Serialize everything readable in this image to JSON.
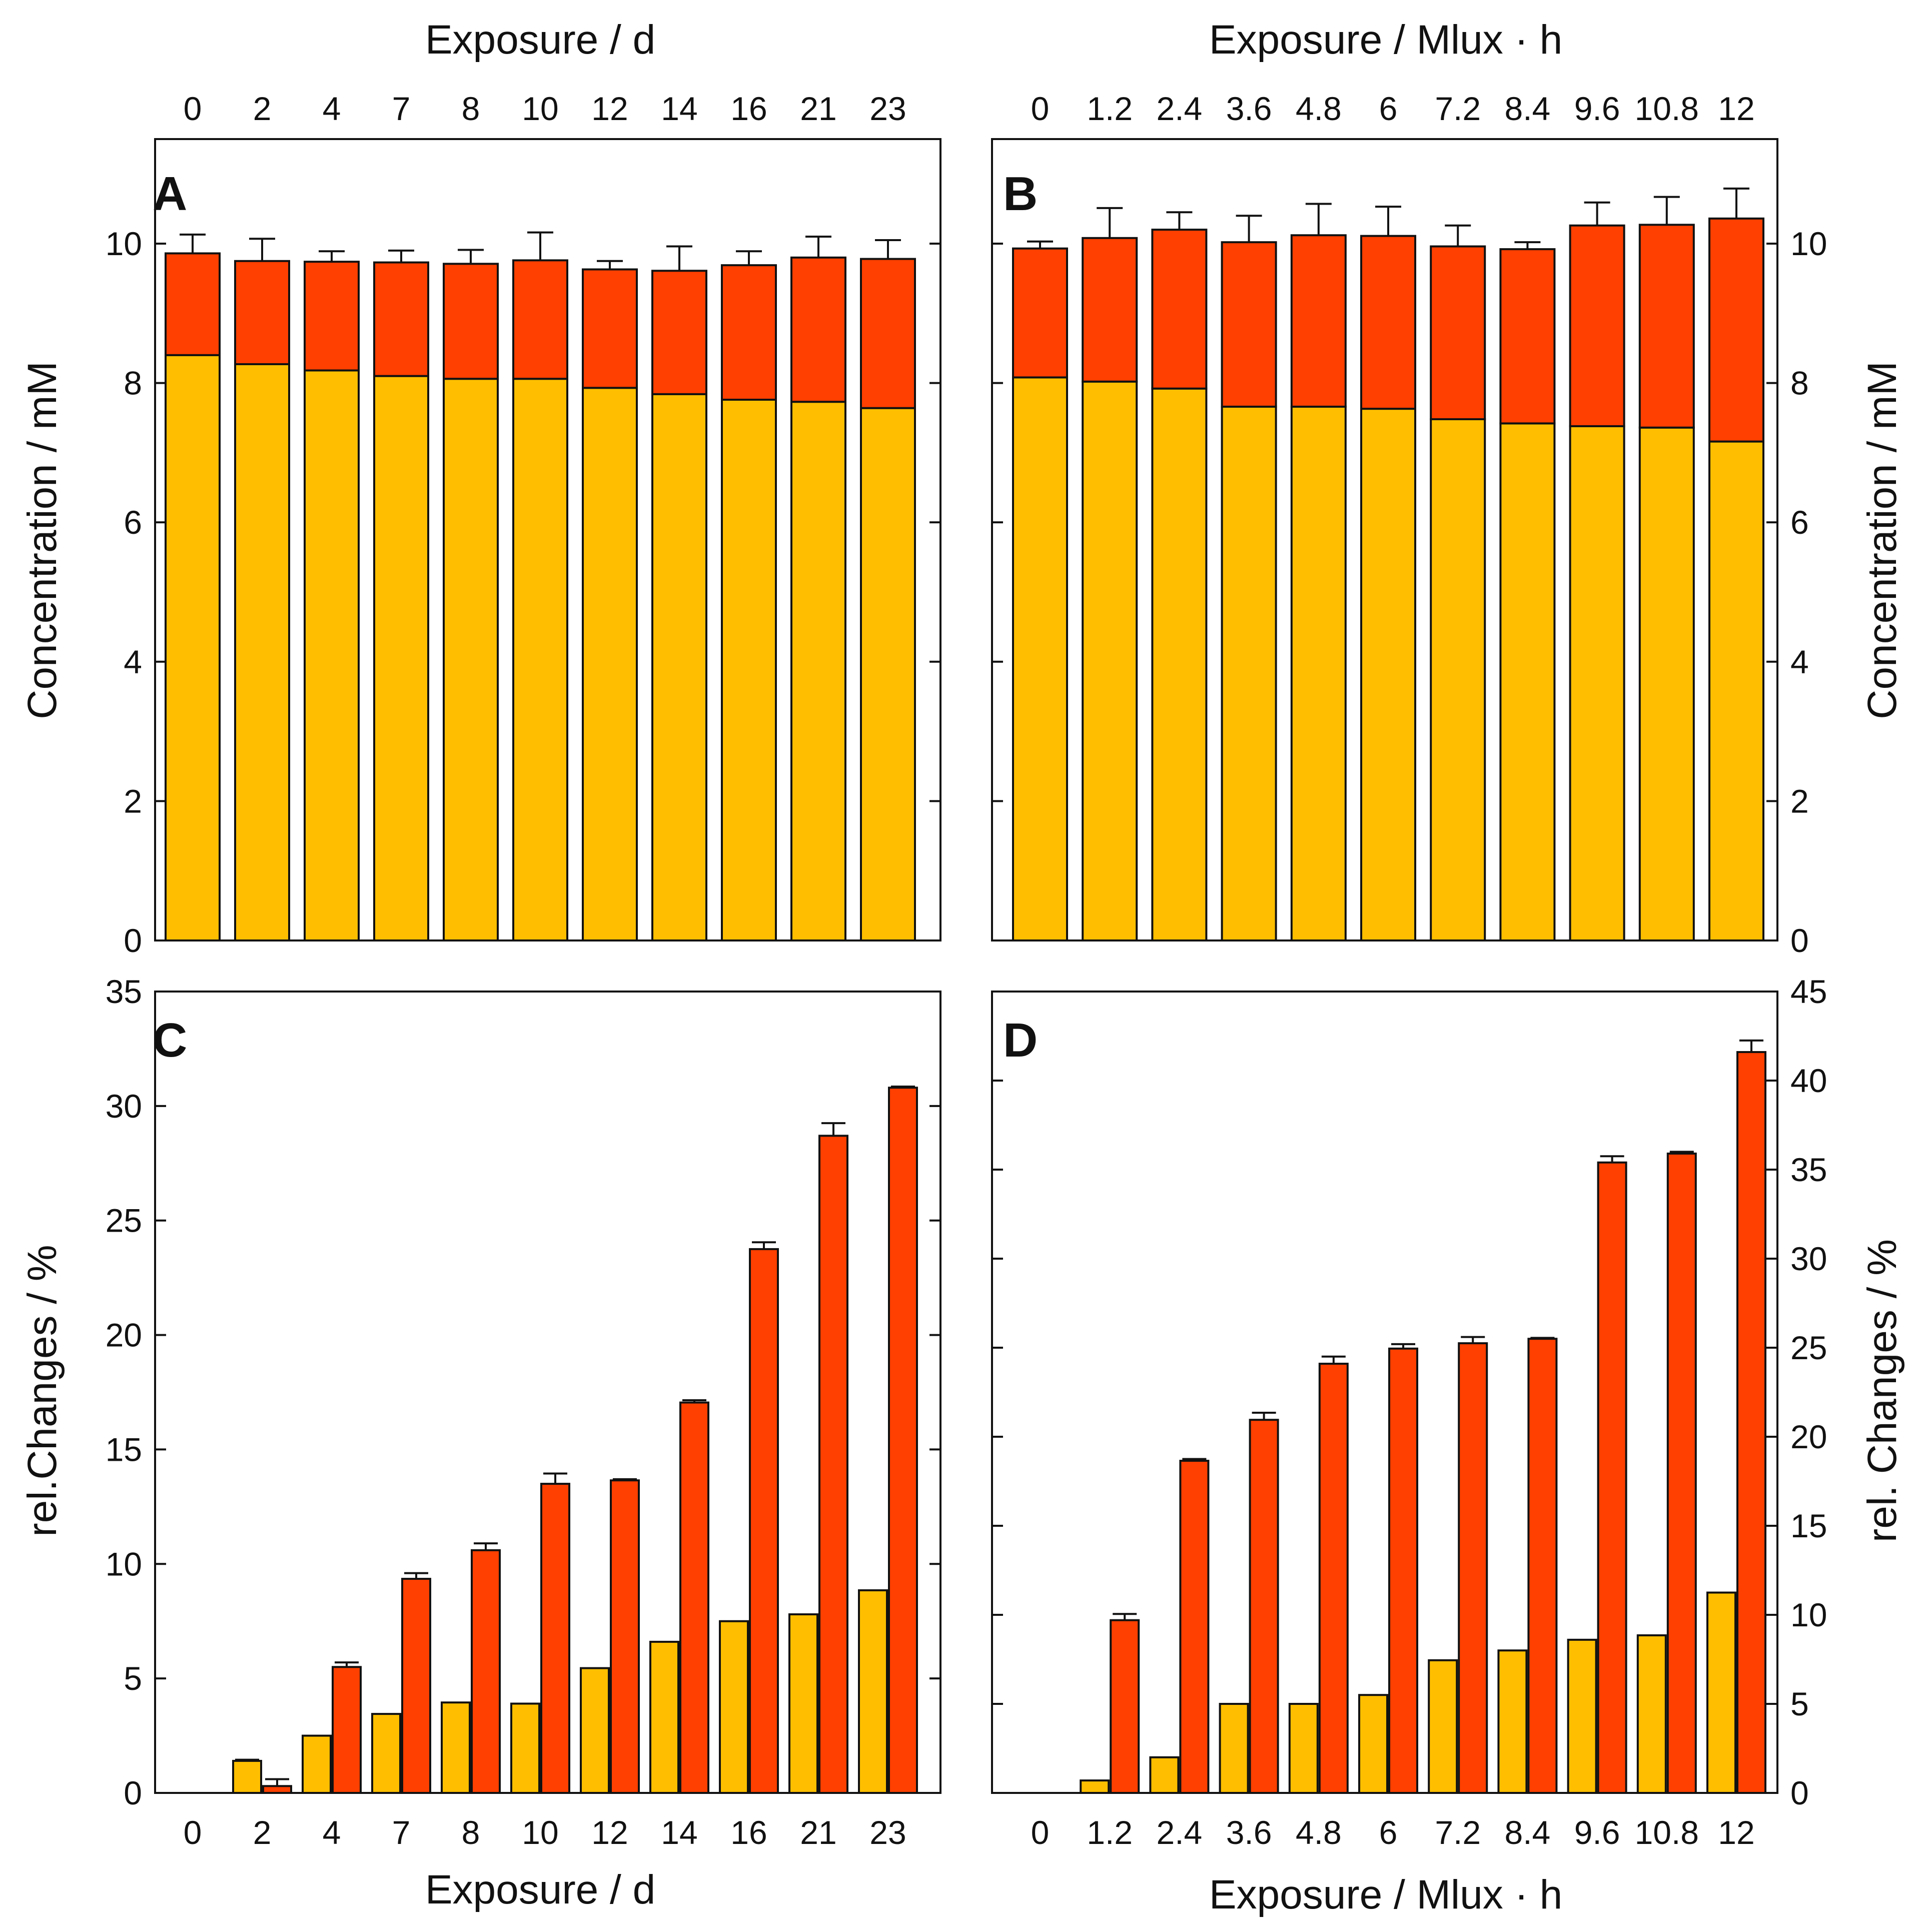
{
  "colors": {
    "yellow": "#FFBF00",
    "red": "#FF4000",
    "ink": "#111111"
  },
  "chart_data": [
    {
      "panel": "A",
      "type": "bar",
      "stacked": true,
      "top_axis_title": "Exposure / d",
      "ylabel": "Concentration / mM",
      "ylim": [
        0,
        11.5
      ],
      "yticks": [
        "0",
        "2",
        "4",
        "6",
        "8",
        "10"
      ],
      "categories": [
        "0",
        "2",
        "4",
        "7",
        "8",
        "10",
        "12",
        "14",
        "16",
        "21",
        "23"
      ],
      "series": [
        {
          "name": "lower",
          "color": "yellow",
          "values": [
            8.4,
            8.27,
            8.18,
            8.1,
            8.06,
            8.06,
            7.93,
            7.84,
            7.76,
            7.73,
            7.64
          ]
        },
        {
          "name": "upper",
          "color": "red",
          "values": [
            1.46,
            1.48,
            1.56,
            1.63,
            1.65,
            1.7,
            1.7,
            1.77,
            1.93,
            2.07,
            2.14
          ]
        }
      ],
      "error_top": [
        0.27,
        0.32,
        0.15,
        0.17,
        0.2,
        0.4,
        0.12,
        0.35,
        0.2,
        0.3,
        0.27
      ],
      "error_lower": [
        0,
        0,
        0,
        0,
        0,
        0,
        0,
        0,
        0,
        0,
        0
      ]
    },
    {
      "panel": "B",
      "type": "bar",
      "stacked": true,
      "top_axis_title": "Exposure / Mlux · h",
      "ylabel": "Concentration / mM",
      "ylim": [
        0,
        11.5
      ],
      "yticks": [
        "0",
        "2",
        "4",
        "6",
        "8",
        "10"
      ],
      "categories": [
        "0",
        "1.2",
        "2.4",
        "3.6",
        "4.8",
        "6",
        "7.2",
        "8.4",
        "9.6",
        "10.8",
        "12"
      ],
      "series": [
        {
          "name": "lower",
          "color": "yellow",
          "values": [
            8.08,
            8.02,
            7.92,
            7.66,
            7.66,
            7.63,
            7.48,
            7.42,
            7.38,
            7.36,
            7.16
          ]
        },
        {
          "name": "upper",
          "color": "red",
          "values": [
            1.85,
            2.06,
            2.28,
            2.36,
            2.46,
            2.48,
            2.48,
            2.5,
            2.88,
            2.91,
            3.2
          ]
        }
      ],
      "error_top": [
        0.1,
        0.43,
        0.25,
        0.38,
        0.45,
        0.42,
        0.3,
        0.1,
        0.33,
        0.4,
        0.43
      ],
      "error_lower": [
        0,
        0,
        0,
        0,
        0,
        0,
        0,
        0,
        0,
        0,
        0
      ]
    },
    {
      "panel": "C",
      "type": "bar",
      "stacked": false,
      "xlabel": "Exposure / d",
      "ylabel": "rel.Changes / %",
      "ylim": [
        0,
        35
      ],
      "yticks": [
        "0",
        "5",
        "10",
        "15",
        "20",
        "25",
        "30",
        "35"
      ],
      "categories": [
        "0",
        "2",
        "4",
        "7",
        "8",
        "10",
        "12",
        "14",
        "16",
        "21",
        "23"
      ],
      "series": [
        {
          "name": "yellow",
          "color": "yellow",
          "values": [
            0,
            1.4,
            2.5,
            3.45,
            3.95,
            3.9,
            5.45,
            6.6,
            7.5,
            7.8,
            8.85
          ]
        },
        {
          "name": "red",
          "color": "red",
          "values": [
            0,
            0.3,
            5.5,
            9.35,
            10.6,
            13.5,
            13.65,
            17.05,
            23.75,
            28.7,
            30.8
          ]
        }
      ],
      "error_yellow": [
        0,
        0.05,
        0,
        0,
        0,
        0,
        0,
        0,
        0,
        0,
        0
      ],
      "error_red": [
        0,
        0.3,
        0.2,
        0.25,
        0.3,
        0.45,
        0.05,
        0.1,
        0.3,
        0.55,
        0.05
      ]
    },
    {
      "panel": "D",
      "type": "bar",
      "stacked": false,
      "xlabel": "Exposure / Mlux · h",
      "ylabel": "rel. Changes / %",
      "ylim": [
        0,
        45
      ],
      "yticks": [
        "0",
        "5",
        "10",
        "15",
        "20",
        "25",
        "30",
        "35",
        "40",
        "45"
      ],
      "categories": [
        "0",
        "1.2",
        "2.4",
        "3.6",
        "4.8",
        "6",
        "7.2",
        "8.4",
        "9.6",
        "10.8",
        "12"
      ],
      "series": [
        {
          "name": "yellow",
          "color": "yellow",
          "values": [
            0,
            0.7,
            2.0,
            5.0,
            5.0,
            5.5,
            7.45,
            8.0,
            8.6,
            8.85,
            11.25
          ]
        },
        {
          "name": "red",
          "color": "red",
          "values": [
            0,
            9.7,
            18.65,
            20.95,
            24.1,
            24.95,
            25.25,
            25.5,
            35.4,
            35.9,
            41.6
          ]
        }
      ],
      "error_yellow": [
        0,
        0,
        0,
        0,
        0,
        0,
        0,
        0,
        0,
        0,
        0
      ],
      "error_red": [
        0,
        0.35,
        0.1,
        0.4,
        0.4,
        0.25,
        0.35,
        0.05,
        0.35,
        0.1,
        0.65
      ]
    }
  ]
}
